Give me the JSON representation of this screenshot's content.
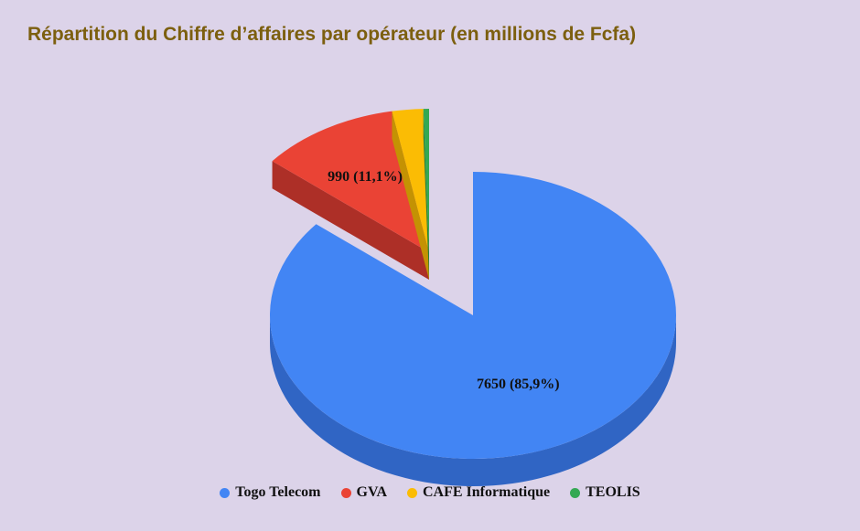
{
  "chart_data": {
    "type": "pie",
    "title": "Répartition du Chiffre d’affaires par opérateur (en millions de Fcfa)",
    "series": [
      {
        "name": "Togo Telecom",
        "value": 7650,
        "label": "7650 (85,9%)",
        "color": "#4285f4",
        "side_color": "#3065c4"
      },
      {
        "name": "GVA",
        "value": 990,
        "label": "990 (11,1%)",
        "color": "#ea4335",
        "side_color": "#ad2f27"
      },
      {
        "name": "CAFE Informatique",
        "value": 220,
        "label": "",
        "color": "#fbbc04",
        "side_color": "#c49203"
      },
      {
        "name": "TEOLIS",
        "value": 40,
        "label": "",
        "color": "#34a853",
        "side_color": "#277e3e"
      }
    ],
    "legend_position": "bottom",
    "exploded": [
      "GVA",
      "CAFE Informatique",
      "TEOLIS"
    ],
    "three_d": true
  }
}
